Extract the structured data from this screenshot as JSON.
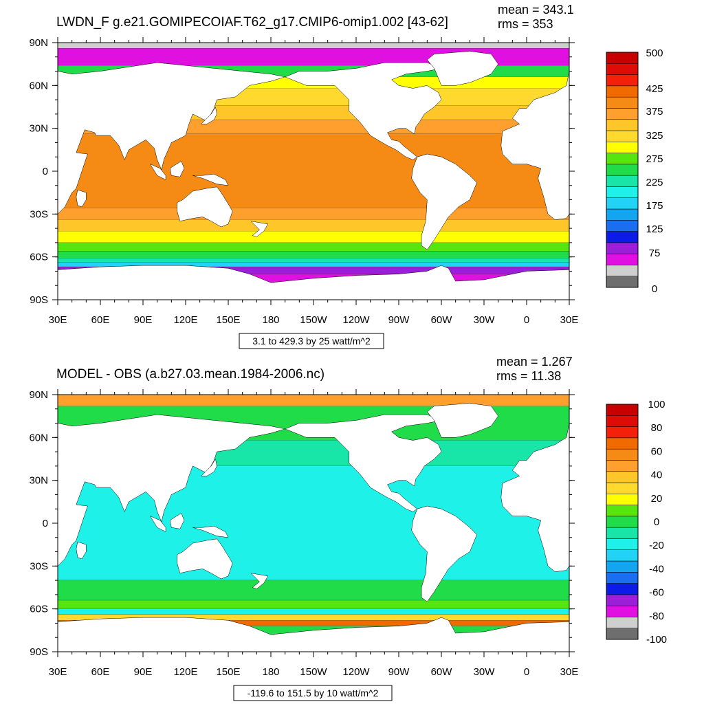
{
  "chart_data": [
    {
      "type": "heatmap",
      "title": "LWDN_F g.e21.GOMIPECOIAF.T62_g17.CMIP6-omip1.002 [43-62]",
      "stats": {
        "mean": "mean = 343.1",
        "rms": "rms = 353"
      },
      "subtitle": "3.1 to 429.3 by 25 watt/m^2",
      "x_ticks": [
        "30E",
        "60E",
        "90E",
        "120E",
        "150E",
        "180",
        "150W",
        "120W",
        "90W",
        "60W",
        "30W",
        "0",
        "30E"
      ],
      "y_ticks": [
        "90N",
        "60N",
        "30N",
        "0",
        "30S",
        "60S",
        "90S"
      ],
      "colorbar": {
        "colors": [
          "#6e6e6e",
          "#cfcfcf",
          "#e010e0",
          "#9b1ed8",
          "#0c1be8",
          "#1a6ff0",
          "#12a6f0",
          "#22d3f5",
          "#1ef2e8",
          "#17e6a8",
          "#1fdc48",
          "#55e60f",
          "#ffff00",
          "#ffd92e",
          "#ffc62a",
          "#ffa02e",
          "#f58a14",
          "#f06a00",
          "#f5200a",
          "#de0b06",
          "#c80000"
        ],
        "labels": [
          "0",
          "75",
          "125",
          "175",
          "225",
          "275",
          "325",
          "375",
          "425",
          "500"
        ]
      },
      "bands": [
        {
          "lat": [
            90,
            86
          ],
          "value": "gray"
        },
        {
          "lat": [
            86,
            74
          ],
          "value": "~50-75"
        },
        {
          "lat": [
            74,
            58
          ],
          "value": "~225-325"
        },
        {
          "lat": [
            58,
            40
          ],
          "value": "~325-375"
        },
        {
          "lat": [
            40,
            -30
          ],
          "value": "~375-425"
        },
        {
          "lat": [
            -30,
            -45
          ],
          "value": "~350-375"
        },
        {
          "lat": [
            -45,
            -58
          ],
          "value": "~275-325"
        },
        {
          "lat": [
            -58,
            -66
          ],
          "value": "~200-275"
        },
        {
          "lat": [
            -66,
            -78
          ],
          "value": "~50-125"
        }
      ]
    },
    {
      "type": "heatmap",
      "title": "MODEL - OBS (a.b27.03.mean.1984-2006.nc)",
      "stats": {
        "mean": "mean = 1.267",
        "rms": "rms = 11.38"
      },
      "subtitle": "-119.6 to 151.5 by 10 watt/m^2",
      "x_ticks": [
        "30E",
        "60E",
        "90E",
        "120E",
        "150E",
        "180",
        "150W",
        "120W",
        "90W",
        "60W",
        "30W",
        "0",
        "30E"
      ],
      "y_ticks": [
        "90N",
        "60N",
        "30N",
        "0",
        "30S",
        "60S",
        "90S"
      ],
      "colorbar": {
        "colors": [
          "#6e6e6e",
          "#cfcfcf",
          "#e010e0",
          "#9b1ed8",
          "#0c1be8",
          "#1a6ff0",
          "#12a6f0",
          "#22d3f5",
          "#1ef2e8",
          "#17e6a8",
          "#1fdc48",
          "#55e60f",
          "#ffff00",
          "#ffd92e",
          "#ffc62a",
          "#ffa02e",
          "#f58a14",
          "#f06a00",
          "#f5200a",
          "#de0b06",
          "#c80000"
        ],
        "labels": [
          "100",
          "80",
          "60",
          "40",
          "20",
          "0",
          "-20",
          "-40",
          "-60",
          "-80",
          "-100"
        ]
      },
      "bands": [
        {
          "lat": [
            90,
            82
          ],
          "value": "~40-60"
        },
        {
          "lat": [
            82,
            40
          ],
          "value": "~0-10"
        },
        {
          "lat": [
            40,
            -40
          ],
          "value": "~-10-0"
        },
        {
          "lat": [
            -40,
            -62
          ],
          "value": "~0-20"
        },
        {
          "lat": [
            -62,
            -75
          ],
          "value": "mixed -60 to 100"
        }
      ]
    }
  ]
}
